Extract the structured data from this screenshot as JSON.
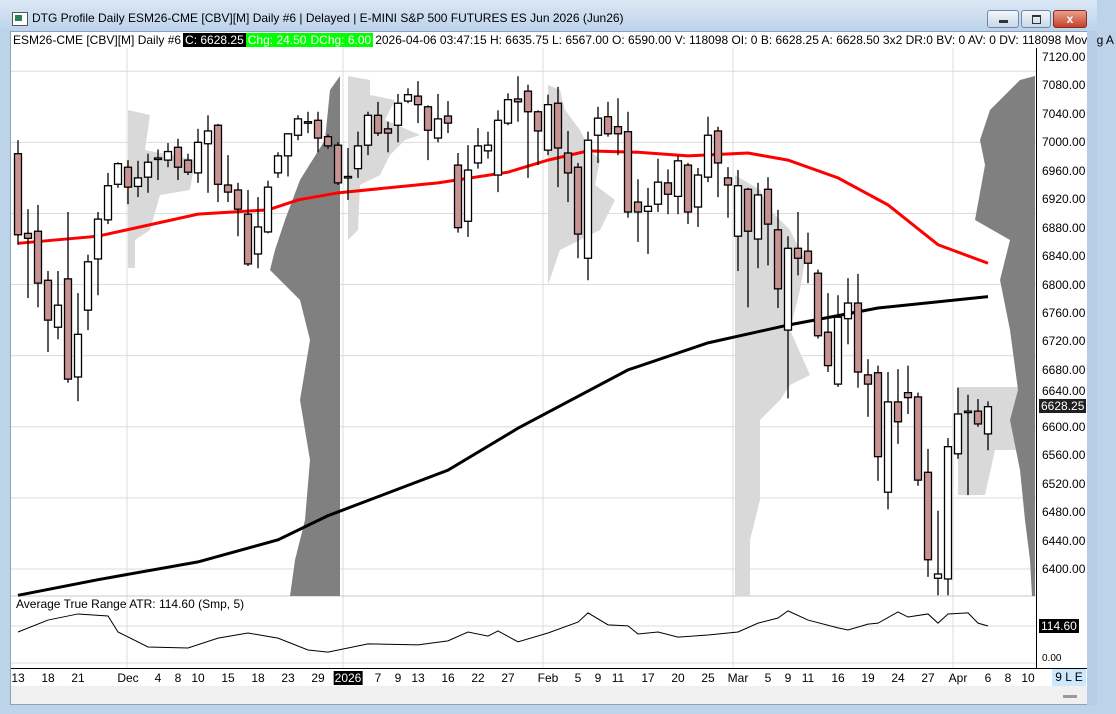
{
  "window": {
    "title": "DTG Profile Daily ESM26-CME [CBV][M]  Daily #6 | Delayed | E-MINI S&P 500 FUTURES ES Jun 2026 (Jun26)",
    "close_glyph": "x"
  },
  "infobar": {
    "symbol": "ESM26-CME [CBV][M]  Daily #6",
    "close": "C: 6628.25",
    "chg": "Chg: 24.50",
    "dchg": "DChg: 6.00",
    "rest": "2026-04-06 03:47:15 H: 6635.75 L: 6567.00 O: 6590.00 V: 118098 OI: 0 B: 6628.25 A: 6628.50 3x2 DR:0 BV: 0 AV: 0 DV: 118098 Moving A"
  },
  "colors": {
    "bear_fill": "#c99393",
    "bull_fill": "#ffffff",
    "ma_fast": "#ff0000",
    "ma_slow": "#000000",
    "profile_light": "#d9d9d9",
    "profile_dark": "#808080",
    "chg_bg": "#00ff00"
  },
  "chart_data": [
    {
      "type": "candlestick",
      "title": "",
      "ylim": [
        6360,
        7130
      ],
      "yticks": [
        "7120.00",
        "7080.00",
        "7040.00",
        "7000.00",
        "6960.00",
        "6920.00",
        "6880.00",
        "6840.00",
        "6800.00",
        "6760.00",
        "6720.00",
        "6680.00",
        "6640.00",
        "6600.00",
        "6560.00",
        "6520.00",
        "6480.00",
        "6440.00",
        "6400.00"
      ],
      "last_price_label": "6628.25",
      "grid": true,
      "columns": [
        "date",
        "open",
        "high",
        "low",
        "close"
      ],
      "candles": [
        [
          "2025-11-13",
          6984,
          7003,
          6856,
          6870
        ],
        [
          "2025-11-14",
          6872,
          6906,
          6781,
          6865
        ],
        [
          "2025-11-17",
          6875,
          6912,
          6768,
          6802
        ],
        [
          "2025-11-18",
          6806,
          6819,
          6705,
          6750
        ],
        [
          "2025-11-19",
          6740,
          6819,
          6723,
          6771
        ],
        [
          "2025-11-20",
          6808,
          6902,
          6662,
          6667
        ],
        [
          "2025-11-21",
          6670,
          6788,
          6636,
          6730
        ],
        [
          "2025-11-24",
          6764,
          6842,
          6736,
          6832
        ],
        [
          "2025-11-25",
          6836,
          6902,
          6785,
          6892
        ],
        [
          "2025-11-26",
          6891,
          6957,
          6885,
          6939
        ],
        [
          "2025-11-28",
          6941,
          6972,
          6936,
          6970
        ],
        [
          "2025-12-01",
          6965,
          6975,
          6913,
          6937
        ],
        [
          "2025-12-02",
          6938,
          6974,
          6923,
          6950
        ],
        [
          "2025-12-03",
          6951,
          6984,
          6929,
          6972
        ],
        [
          "2025-12-04",
          6977,
          6990,
          6947,
          6978
        ],
        [
          "2025-12-05",
          6975,
          6999,
          6965,
          6987
        ],
        [
          "2025-12-08",
          6993,
          7005,
          6947,
          6965
        ],
        [
          "2025-12-09",
          6975,
          6984,
          6954,
          6958
        ],
        [
          "2025-12-10",
          6957,
          7019,
          6943,
          7000
        ],
        [
          "2025-12-11",
          6998,
          7038,
          6929,
          7016
        ],
        [
          "2025-12-12",
          7024,
          7026,
          6916,
          6941
        ],
        [
          "2025-12-15",
          6940,
          6982,
          6916,
          6930
        ],
        [
          "2025-12-16",
          6933,
          6943,
          6868,
          6906
        ],
        [
          "2025-12-17",
          6899,
          6933,
          6826,
          6829
        ],
        [
          "2025-12-18",
          6843,
          6923,
          6823,
          6881
        ],
        [
          "2025-12-19",
          6874,
          6946,
          6872,
          6937
        ],
        [
          "2025-12-22",
          6957,
          6986,
          6950,
          6981
        ],
        [
          "2025-12-23",
          6981,
          7013,
          6952,
          7012
        ],
        [
          "2025-12-24",
          7010,
          7038,
          7003,
          7033
        ],
        [
          "2025-12-26",
          7027,
          7043,
          7013,
          7029
        ],
        [
          "2025-12-29",
          7031,
          7043,
          6986,
          7006
        ],
        [
          "2025-12-30",
          7008,
          7011,
          6991,
          6995
        ],
        [
          "2025-12-31",
          6996,
          7000,
          6940,
          6943
        ],
        [
          "2026-01-02",
          6950,
          6992,
          6919,
          6952
        ],
        [
          "2026-01-05",
          6963,
          7015,
          6950,
          6995
        ],
        [
          "2026-01-06",
          6996,
          7043,
          6982,
          7038
        ],
        [
          "2026-01-07",
          7038,
          7057,
          7009,
          7013
        ],
        [
          "2026-01-08",
          7019,
          7029,
          6986,
          7013
        ],
        [
          "2026-01-09",
          7024,
          7068,
          7000,
          7055
        ],
        [
          "2026-01-12",
          7058,
          7076,
          7055,
          7067
        ],
        [
          "2026-01-13",
          7065,
          7086,
          7027,
          7053
        ],
        [
          "2026-01-14",
          7050,
          7052,
          6975,
          7017
        ],
        [
          "2026-01-15",
          7006,
          7068,
          7000,
          7033
        ],
        [
          "2026-01-16",
          7037,
          7058,
          7013,
          7027
        ],
        [
          "2026-01-20",
          6968,
          6985,
          6873,
          6880
        ],
        [
          "2026-01-21",
          6889,
          6996,
          6867,
          6961
        ],
        [
          "2026-01-22",
          6971,
          7020,
          6963,
          6995
        ],
        [
          "2026-01-23",
          6988,
          7015,
          6977,
          6996
        ],
        [
          "2026-01-26",
          6954,
          7045,
          6930,
          7031
        ],
        [
          "2026-01-27",
          7027,
          7069,
          7024,
          7060
        ],
        [
          "2026-01-28",
          7061,
          7093,
          7029,
          7057
        ],
        [
          "2026-01-29",
          7072,
          7081,
          6950,
          7043
        ],
        [
          "2026-01-30",
          7043,
          7045,
          6968,
          7016
        ],
        [
          "2026-02-02",
          6989,
          7067,
          6982,
          7053
        ],
        [
          "2026-02-03",
          7055,
          7078,
          6937,
          6992
        ],
        [
          "2026-02-04",
          6985,
          7016,
          6916,
          6957
        ],
        [
          "2026-02-05",
          6965,
          6971,
          6837,
          6871
        ],
        [
          "2026-02-06",
          6837,
          7015,
          6806,
          7003
        ],
        [
          "2026-02-09",
          7010,
          7050,
          6971,
          7034
        ],
        [
          "2026-02-10",
          7036,
          7057,
          7008,
          7012
        ],
        [
          "2026-02-11",
          7022,
          7062,
          6982,
          7012
        ],
        [
          "2026-02-12",
          7015,
          7043,
          6894,
          6902
        ],
        [
          "2026-02-13",
          6916,
          6948,
          6860,
          6902
        ],
        [
          "2026-02-17",
          6903,
          6936,
          6843,
          6910
        ],
        [
          "2026-02-18",
          6913,
          6977,
          6902,
          6944
        ],
        [
          "2026-02-19",
          6943,
          6962,
          6899,
          6927
        ],
        [
          "2026-02-20",
          6924,
          6981,
          6899,
          6974
        ],
        [
          "2026-02-23",
          6968,
          6971,
          6885,
          6902
        ],
        [
          "2026-02-24",
          6909,
          6964,
          6881,
          6954
        ],
        [
          "2026-02-25",
          6951,
          7036,
          6944,
          7010
        ],
        [
          "2026-02-26",
          7016,
          7022,
          6923,
          6971
        ],
        [
          "2026-02-27",
          6950,
          6965,
          6894,
          6940
        ],
        [
          "2026-03-02",
          6868,
          6961,
          6819,
          6939
        ],
        [
          "2026-03-03",
          6934,
          6936,
          6768,
          6875
        ],
        [
          "2026-03-04",
          6864,
          6943,
          6823,
          6926
        ],
        [
          "2026-03-05",
          6934,
          6951,
          6827,
          6885
        ],
        [
          "2026-03-06",
          6877,
          6905,
          6767,
          6794
        ],
        [
          "2026-03-09",
          6736,
          6868,
          6640,
          6851
        ],
        [
          "2026-03-10",
          6851,
          6902,
          6813,
          6837
        ],
        [
          "2026-03-11",
          6847,
          6873,
          6802,
          6830
        ],
        [
          "2026-03-12",
          6816,
          6821,
          6724,
          6728
        ],
        [
          "2026-03-13",
          6733,
          6788,
          6677,
          6686
        ],
        [
          "2026-03-16",
          6660,
          6785,
          6656,
          6754
        ],
        [
          "2026-03-17",
          6752,
          6809,
          6716,
          6774
        ],
        [
          "2026-03-18",
          6774,
          6815,
          6655,
          6677
        ],
        [
          "2026-03-19",
          6673,
          6695,
          6614,
          6660
        ],
        [
          "2026-03-20",
          6676,
          6686,
          6524,
          6558
        ],
        [
          "2026-03-23",
          6508,
          6677,
          6484,
          6635
        ],
        [
          "2026-03-24",
          6635,
          6681,
          6576,
          6607
        ],
        [
          "2026-03-25",
          6648,
          6686,
          6618,
          6641
        ],
        [
          "2026-03-26",
          6642,
          6648,
          6517,
          6525
        ],
        [
          "2026-03-27",
          6536,
          6569,
          6389,
          6413
        ],
        [
          "2026-03-30",
          6387,
          6482,
          6363,
          6393
        ],
        [
          "2026-03-31",
          6386,
          6584,
          6363,
          6572
        ],
        [
          "2026-04-01",
          6562,
          6655,
          6555,
          6618
        ],
        [
          "2026-04-02",
          6620,
          6645,
          6504,
          6622
        ],
        [
          "2026-04-03",
          6622,
          6639,
          6600,
          6604
        ],
        [
          "2026-04-06",
          6590,
          6635.75,
          6567,
          6628.25
        ]
      ],
      "moving_averages": [
        {
          "color": "#ff0000",
          "points": [
            [
              "2025-11-13",
              6858
            ],
            [
              "2025-11-25",
              6868
            ],
            [
              "2025-12-10",
              6899
            ],
            [
              "2025-12-19",
              6905
            ],
            [
              "2025-12-24",
              6919
            ],
            [
              "2025-12-31",
              6929
            ],
            [
              "2026-01-15",
              6943
            ],
            [
              "2026-01-27",
              6958
            ],
            [
              "2026-02-02",
              6975
            ],
            [
              "2026-02-06",
              6988
            ],
            [
              "2026-02-13",
              6986
            ],
            [
              "2026-02-23",
              6981
            ],
            [
              "2026-03-03",
              6985
            ],
            [
              "2026-03-09",
              6975
            ],
            [
              "2026-03-16",
              6950
            ],
            [
              "2026-03-23",
              6912
            ],
            [
              "2026-03-30",
              6856
            ],
            [
              "2026-04-06",
              6830
            ]
          ]
        },
        {
          "color": "#000000",
          "points": [
            [
              "2025-11-13",
              6363
            ],
            [
              "2025-11-25",
              6385
            ],
            [
              "2025-12-10",
              6410
            ],
            [
              "2025-12-22",
              6441
            ],
            [
              "2025-12-30",
              6475
            ],
            [
              "2026-01-16",
              6539
            ],
            [
              "2026-01-28",
              6598
            ],
            [
              "2026-02-12",
              6680
            ],
            [
              "2026-02-25",
              6718
            ],
            [
              "2026-03-09",
              6743
            ],
            [
              "2026-03-20",
              6767
            ],
            [
              "2026-04-06",
              6783
            ]
          ]
        }
      ],
      "xticks": [
        "13",
        "18",
        "21",
        "Dec",
        "4",
        "8",
        "10",
        "15",
        "18",
        "23",
        "29",
        "2026",
        "7",
        "9",
        "13",
        "16",
        "22",
        "27",
        "Feb",
        "5",
        "9",
        "11",
        "17",
        "20",
        "25",
        "Mar",
        "5",
        "9",
        "11",
        "16",
        "19",
        "24",
        "27",
        "Apr",
        "6",
        "8",
        "10"
      ],
      "xtick_dates": [
        "2025-11-13",
        "2025-11-18",
        "2025-11-21",
        "2025-12-01",
        "2025-12-04",
        "2025-12-08",
        "2025-12-10",
        "2025-12-15",
        "2025-12-18",
        "2025-12-23",
        "2025-12-29",
        "2026-01-02",
        "2026-01-07",
        "2026-01-09",
        "2026-01-13",
        "2026-01-16",
        "2026-01-22",
        "2026-01-27",
        "2026-02-02",
        "2026-02-05",
        "2026-02-09",
        "2026-02-11",
        "2026-02-17",
        "2026-02-20",
        "2026-02-25",
        "2026-03-02",
        "2026-03-05",
        "2026-03-09",
        "2026-03-11",
        "2026-03-16",
        "2026-03-19",
        "2026-03-24",
        "2026-03-27",
        "2026-04-01",
        "2026-04-06",
        "2026-04-08",
        "2026-04-10"
      ]
    },
    {
      "type": "line",
      "title": "Average True Range  ATR: 114.60  (Smp, 5)",
      "last_value_label": "114.60",
      "zero_label": "0.00",
      "points": [
        [
          "2025-11-13",
          97
        ],
        [
          "2025-11-18",
          132
        ],
        [
          "2025-11-21",
          150
        ],
        [
          "2025-11-26",
          144
        ],
        [
          "2025-11-28",
          97
        ],
        [
          "2025-12-03",
          53
        ],
        [
          "2025-12-09",
          50
        ],
        [
          "2025-12-12",
          79
        ],
        [
          "2025-12-17",
          94
        ],
        [
          "2025-12-22",
          79
        ],
        [
          "2025-12-26",
          44
        ],
        [
          "2025-12-30",
          38
        ],
        [
          "2026-01-06",
          62
        ],
        [
          "2026-01-13",
          59
        ],
        [
          "2026-01-16",
          71
        ],
        [
          "2026-01-21",
          97
        ],
        [
          "2026-01-23",
          85
        ],
        [
          "2026-01-26",
          100
        ],
        [
          "2026-01-28",
          68
        ],
        [
          "2026-02-02",
          94
        ],
        [
          "2026-02-05",
          126
        ],
        [
          "2026-02-06",
          153
        ],
        [
          "2026-02-10",
          118
        ],
        [
          "2026-02-12",
          115
        ],
        [
          "2026-02-13",
          91
        ],
        [
          "2026-02-18",
          97
        ],
        [
          "2026-02-20",
          82
        ],
        [
          "2026-02-25",
          88
        ],
        [
          "2026-03-02",
          97
        ],
        [
          "2026-03-04",
          123
        ],
        [
          "2026-03-06",
          138
        ],
        [
          "2026-03-09",
          159
        ],
        [
          "2026-03-11",
          132
        ],
        [
          "2026-03-16",
          109
        ],
        [
          "2026-03-17",
          103
        ],
        [
          "2026-03-19",
          120
        ],
        [
          "2026-03-20",
          123
        ],
        [
          "2026-03-24",
          156
        ],
        [
          "2026-03-25",
          141
        ],
        [
          "2026-03-27",
          150
        ],
        [
          "2026-03-30",
          123
        ],
        [
          "2026-03-31",
          150
        ],
        [
          "2026-04-02",
          153
        ],
        [
          "2026-04-03",
          123
        ],
        [
          "2026-04-06",
          114.6
        ]
      ]
    }
  ],
  "status": {
    "zoom_label": "9 L E"
  }
}
